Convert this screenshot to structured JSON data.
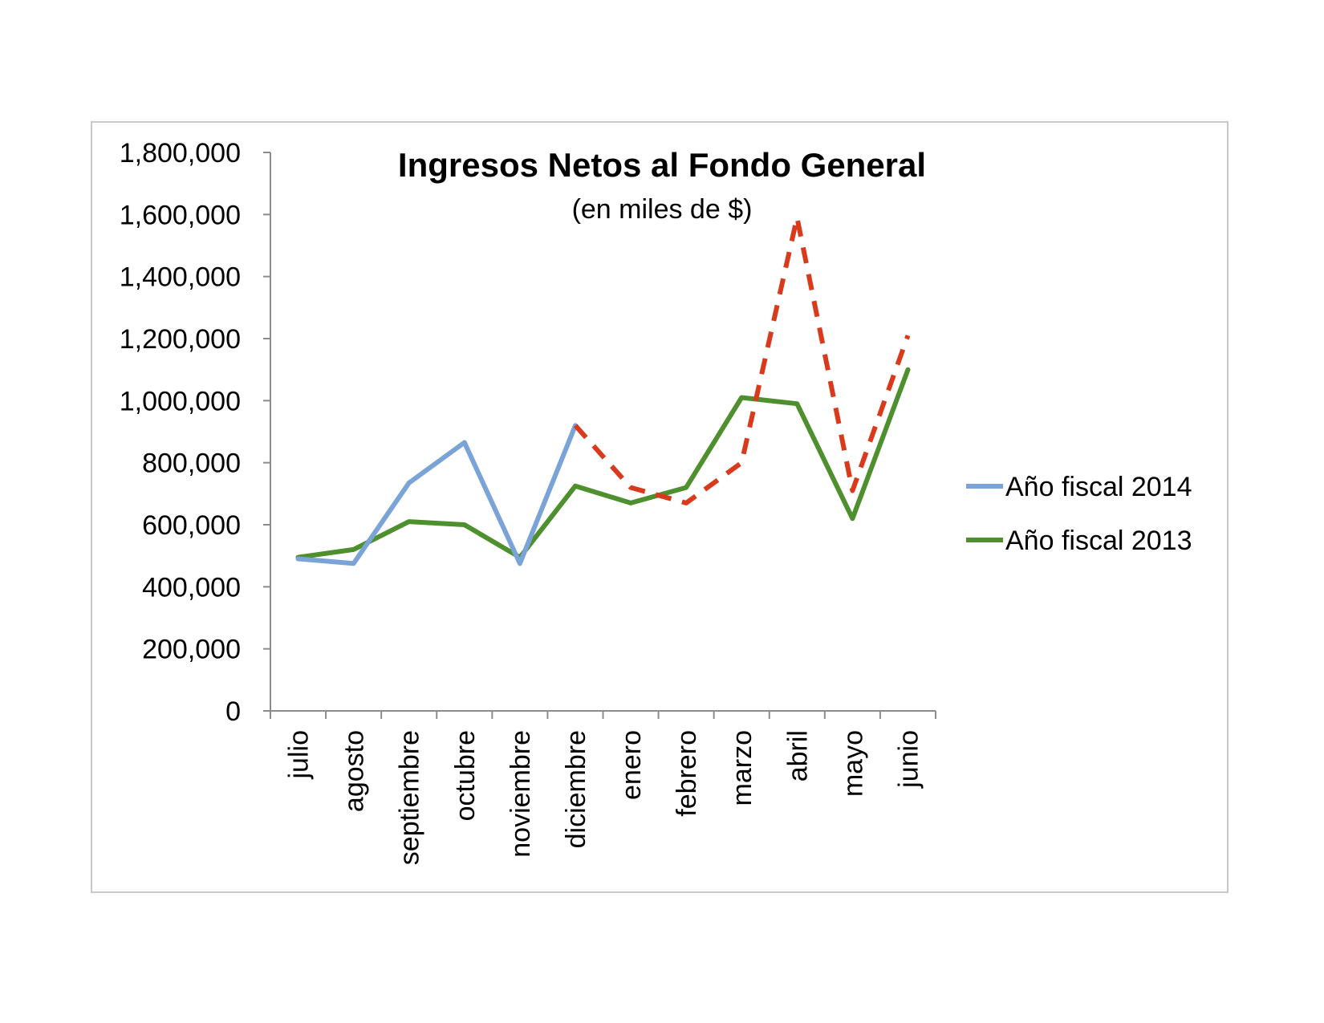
{
  "chart_data": {
    "type": "line",
    "title": "Ingresos Netos al Fondo General",
    "subtitle": "(en miles de $)",
    "xlabel": "",
    "ylabel": "",
    "categories": [
      "julio",
      "agosto",
      "septiembre",
      "octubre",
      "noviembre",
      "diciembre",
      "enero",
      "febrero",
      "marzo",
      "abril",
      "mayo",
      "junio"
    ],
    "ylim": [
      0,
      1800000
    ],
    "yticks": [
      0,
      200000,
      400000,
      600000,
      800000,
      1000000,
      1200000,
      1400000,
      1600000,
      1800000
    ],
    "ytick_labels": [
      "0",
      "200,000",
      "400,000",
      "600,000",
      "800,000",
      "1,000,000",
      "1,200,000",
      "1,400,000",
      "1,600,000",
      "1,800,000"
    ],
    "grid": false,
    "legend_position": "right",
    "series": [
      {
        "name": "Año fiscal 2014",
        "color": "#7aa3d8",
        "values": [
          490000,
          475000,
          735000,
          865000,
          475000,
          920000,
          null,
          null,
          null,
          null,
          null,
          null
        ]
      },
      {
        "name": "Año fiscal 2013",
        "color": "#4e8f2e",
        "values": [
          495000,
          520000,
          610000,
          600000,
          495000,
          725000,
          670000,
          720000,
          1010000,
          990000,
          620000,
          1100000
        ]
      },
      {
        "name": "",
        "color": "#d93a1c",
        "style": "dashed",
        "values": [
          null,
          null,
          null,
          null,
          null,
          920000,
          720000,
          670000,
          800000,
          1590000,
          710000,
          1210000
        ]
      }
    ]
  }
}
